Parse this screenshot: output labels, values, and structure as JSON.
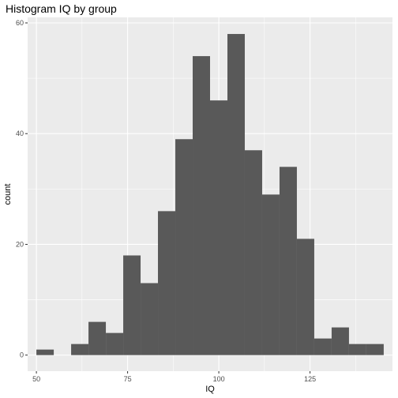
{
  "chart_data": {
    "type": "bar",
    "title": "Histogram IQ by group",
    "xlabel": "IQ",
    "ylabel": "count",
    "bin_width": 4.76,
    "bins": [
      {
        "x_start": 50.0,
        "count": 1
      },
      {
        "x_start": 54.76,
        "count": 0
      },
      {
        "x_start": 59.52,
        "count": 2
      },
      {
        "x_start": 64.28,
        "count": 6
      },
      {
        "x_start": 69.04,
        "count": 4
      },
      {
        "x_start": 73.8,
        "count": 18
      },
      {
        "x_start": 78.56,
        "count": 13
      },
      {
        "x_start": 83.32,
        "count": 26
      },
      {
        "x_start": 88.08,
        "count": 39
      },
      {
        "x_start": 92.84,
        "count": 54
      },
      {
        "x_start": 97.6,
        "count": 46
      },
      {
        "x_start": 102.36,
        "count": 58
      },
      {
        "x_start": 107.12,
        "count": 37
      },
      {
        "x_start": 111.88,
        "count": 29
      },
      {
        "x_start": 116.64,
        "count": 34
      },
      {
        "x_start": 121.4,
        "count": 21
      },
      {
        "x_start": 126.16,
        "count": 3
      },
      {
        "x_start": 130.92,
        "count": 5
      },
      {
        "x_start": 135.68,
        "count": 2
      },
      {
        "x_start": 140.44,
        "count": 2
      }
    ],
    "xlim": [
      47.6,
      147.6
    ],
    "ylim": [
      -2.9,
      61
    ],
    "x_ticks": [
      50,
      75,
      100,
      125
    ],
    "x_tick_labels": [
      "50",
      "75",
      "100",
      "125"
    ],
    "y_ticks": [
      0,
      20,
      40,
      60
    ],
    "y_tick_labels": [
      "0",
      "20",
      "40",
      "60"
    ],
    "grid": true,
    "legend": "none",
    "colors": {
      "panel_background": "#ebebeb",
      "grid_major": "#ffffff",
      "bar_fill": "#595959",
      "tick_text": "#4d4d4d"
    }
  }
}
